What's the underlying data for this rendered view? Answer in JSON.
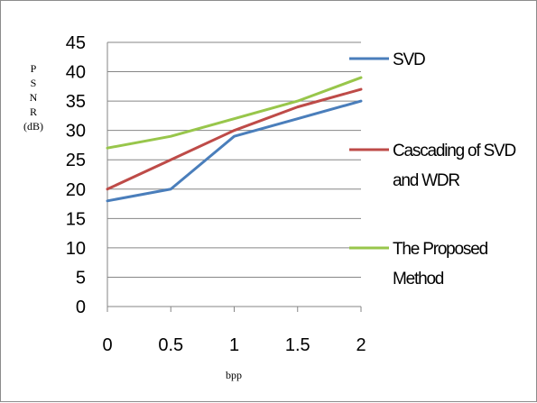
{
  "chart_data": {
    "type": "line",
    "title": "",
    "xlabel": "bpp",
    "ylabel_letters": [
      "P",
      "S",
      "N",
      "R"
    ],
    "ylabel_unit": "(dB)",
    "x": [
      0,
      0.5,
      1,
      1.5,
      2
    ],
    "x_tick_labels": [
      "0",
      "0.5",
      "1",
      "1.5",
      "2"
    ],
    "ylim": [
      0,
      45
    ],
    "y_ticks": [
      0,
      5,
      10,
      15,
      20,
      25,
      30,
      35,
      40,
      45
    ],
    "grid": "horizontal",
    "legend_position": "right",
    "series": [
      {
        "name_lines": [
          "SVD"
        ],
        "color": "#4a7ebb",
        "values": [
          18,
          20,
          29,
          32,
          35
        ]
      },
      {
        "name_lines": [
          "Cascading of SVD",
          "and WDR"
        ],
        "color": "#be4b48",
        "values": [
          20,
          25,
          30,
          34,
          37
        ]
      },
      {
        "name_lines": [
          "The Proposed",
          "Method"
        ],
        "color": "#98c64b",
        "values": [
          27,
          29,
          32,
          35,
          39
        ]
      }
    ]
  }
}
